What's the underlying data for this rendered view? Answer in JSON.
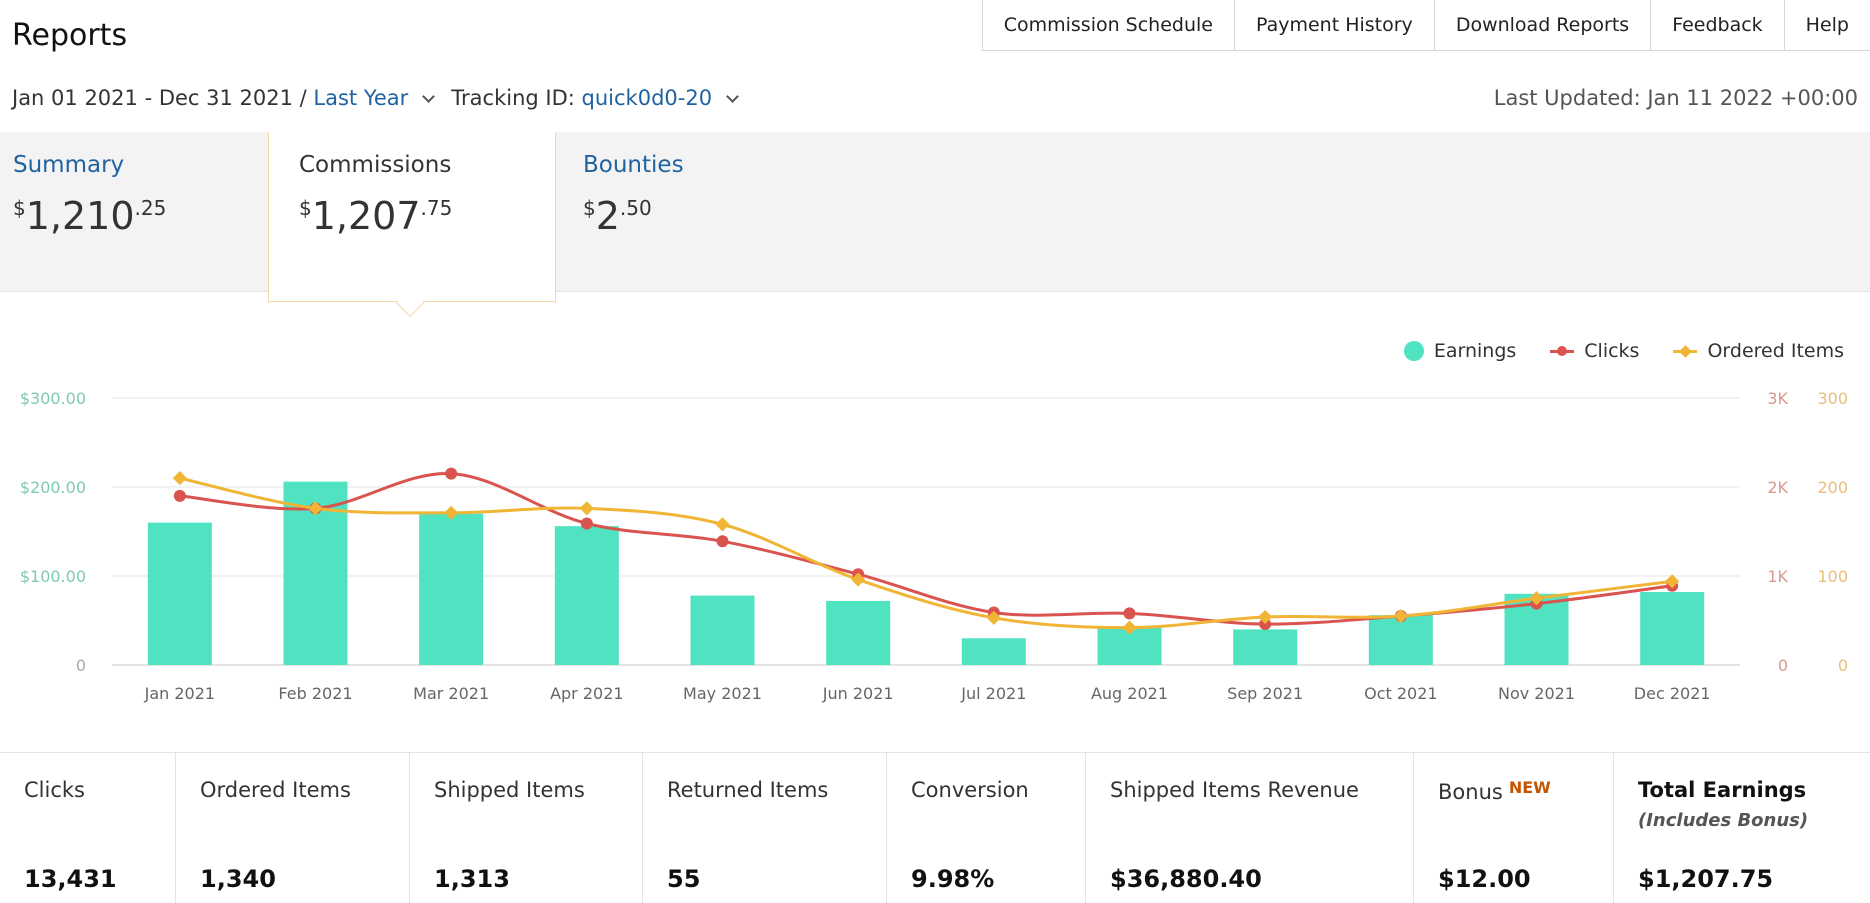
{
  "header": {
    "title": "Reports",
    "nav": [
      "Commission Schedule",
      "Payment History",
      "Download Reports",
      "Feedback",
      "Help"
    ]
  },
  "filters": {
    "date_range": "Jan 01 2021 - Dec 31 2021 /",
    "period": "Last Year",
    "tracking_label": "Tracking ID:",
    "tracking_id": "quick0d0-20",
    "last_updated": "Last Updated: Jan 11 2022 +00:00"
  },
  "tabs": {
    "summary": {
      "label": "Summary",
      "currency": "$",
      "whole": "1,210",
      "cents": ".25"
    },
    "commissions": {
      "label": "Commissions",
      "currency": "$",
      "whole": "1,207",
      "cents": ".75"
    },
    "bounties": {
      "label": "Bounties",
      "currency": "$",
      "whole": "2",
      "cents": ".50"
    }
  },
  "legend": {
    "earnings": "Earnings",
    "clicks": "Clicks",
    "ordered": "Ordered Items"
  },
  "colors": {
    "earnings": "#50e3c2",
    "clicks": "#d9534f",
    "ordered": "#f0b535",
    "link": "#2162a1",
    "badge": "#c45500"
  },
  "chart_data": {
    "type": "bar",
    "categories": [
      "Jan 2021",
      "Feb 2021",
      "Mar 2021",
      "Apr 2021",
      "May 2021",
      "Jun 2021",
      "Jul 2021",
      "Aug 2021",
      "Sep 2021",
      "Oct 2021",
      "Nov 2021",
      "Dec 2021"
    ],
    "series": [
      {
        "name": "Earnings",
        "type": "bar",
        "axis": "left",
        "values": [
          160,
          206,
          170,
          156,
          78,
          72,
          30,
          42,
          40,
          56,
          80,
          82
        ]
      },
      {
        "name": "Clicks",
        "type": "line",
        "axis": "right-clicks",
        "values": [
          1900,
          1760,
          2150,
          1590,
          1390,
          1020,
          590,
          580,
          460,
          550,
          690,
          890
        ]
      },
      {
        "name": "Ordered Items",
        "type": "line",
        "axis": "right-items",
        "values": [
          210,
          176,
          171,
          176,
          158,
          96,
          53,
          42,
          54,
          55,
          75,
          94
        ]
      }
    ],
    "left_axis": {
      "ticks": [
        "0",
        "$100.00",
        "$200.00",
        "$300.00"
      ],
      "ylim": [
        0,
        300
      ]
    },
    "right_axis_clicks": {
      "ticks": [
        "0",
        "1K",
        "2K",
        "3K"
      ],
      "ylim": [
        0,
        3000
      ]
    },
    "right_axis_items": {
      "ticks": [
        "0",
        "100",
        "200",
        "300"
      ],
      "ylim": [
        0,
        300
      ]
    },
    "grid": true,
    "legend_position": "top-right"
  },
  "stats": [
    {
      "label": "Clicks",
      "value": "13,431"
    },
    {
      "label": "Ordered Items",
      "value": "1,340"
    },
    {
      "label": "Shipped Items",
      "value": "1,313"
    },
    {
      "label": "Returned Items",
      "value": "55"
    },
    {
      "label": "Conversion",
      "value": "9.98%"
    },
    {
      "label": "Shipped Items Revenue",
      "value": "$36,880.40"
    },
    {
      "label": "Bonus",
      "badge": "NEW",
      "value": "$12.00"
    },
    {
      "label": "Total Earnings",
      "sub": "(Includes Bonus)",
      "value": "$1,207.75"
    }
  ]
}
